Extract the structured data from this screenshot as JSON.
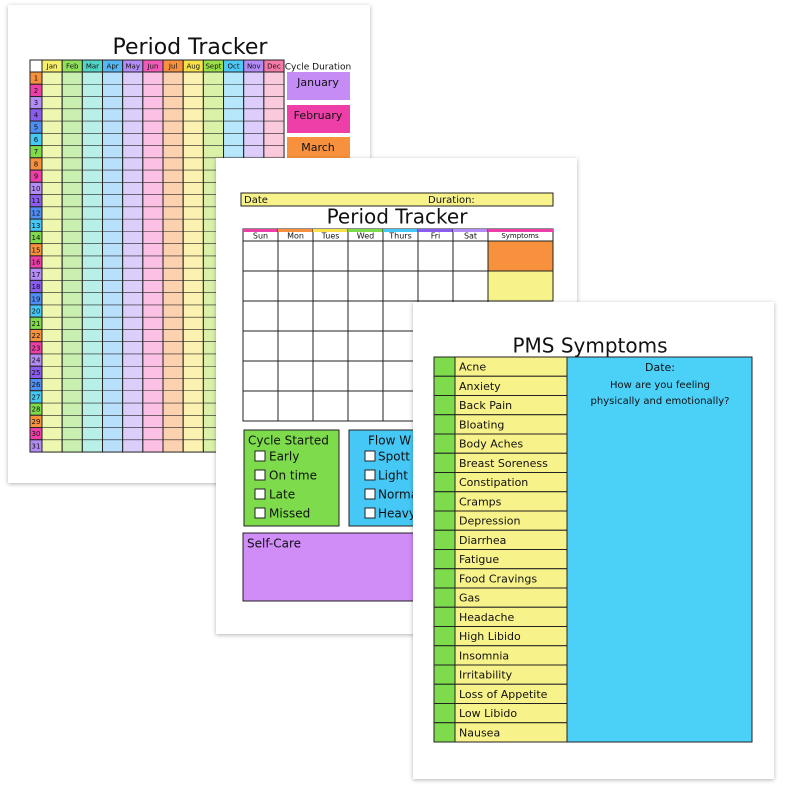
{
  "page1": {
    "title": "Period Tracker",
    "months": [
      "Jan",
      "Feb",
      "Mar",
      "Apr",
      "May",
      "Jun",
      "Jul",
      "Aug",
      "Sept",
      "Oct",
      "Nov",
      "Dec"
    ],
    "days": [
      1,
      2,
      3,
      4,
      5,
      6,
      7,
      8,
      9,
      10,
      11,
      12,
      13,
      14,
      15,
      16,
      17,
      18,
      19,
      20,
      21,
      22,
      23,
      24,
      25,
      26,
      27,
      28,
      29,
      30,
      31
    ],
    "cycle_duration_label": "Cycle Duration",
    "cycle_months": [
      "January",
      "February",
      "March"
    ]
  },
  "page2": {
    "date_label": "Date",
    "duration_label": "Duration:",
    "title": "Period Tracker",
    "weekdays": [
      "Sun",
      "Mon",
      "Tues",
      "Wed",
      "Thurs",
      "Fri",
      "Sat"
    ],
    "symptoms_header": "Symptoms",
    "cycle_started": {
      "title": "Cycle Started",
      "options": [
        "Early",
        "On time",
        "Late",
        "Missed"
      ]
    },
    "flow": {
      "title": "Flow W",
      "options": [
        "Spott",
        "Light",
        "Norma",
        "Heavy"
      ]
    },
    "self_care_label": "Self-Care"
  },
  "page3": {
    "title": "PMS Symptoms",
    "symptoms": [
      "Acne",
      "Anxiety",
      "Back Pain",
      "Bloating",
      "Body Aches",
      "Breast Soreness",
      "Constipation",
      "Cramps",
      "Depression",
      "Diarrhea",
      "Fatigue",
      "Food Cravings",
      "Gas",
      "Headache",
      "High Libido",
      "Insomnia",
      "Irritability",
      "Loss of Appetite",
      "Low Libido",
      "Nausea"
    ],
    "date_label": "Date:",
    "prompt_lines": [
      "How are you feeling",
      "physically and emotionally?"
    ]
  }
}
